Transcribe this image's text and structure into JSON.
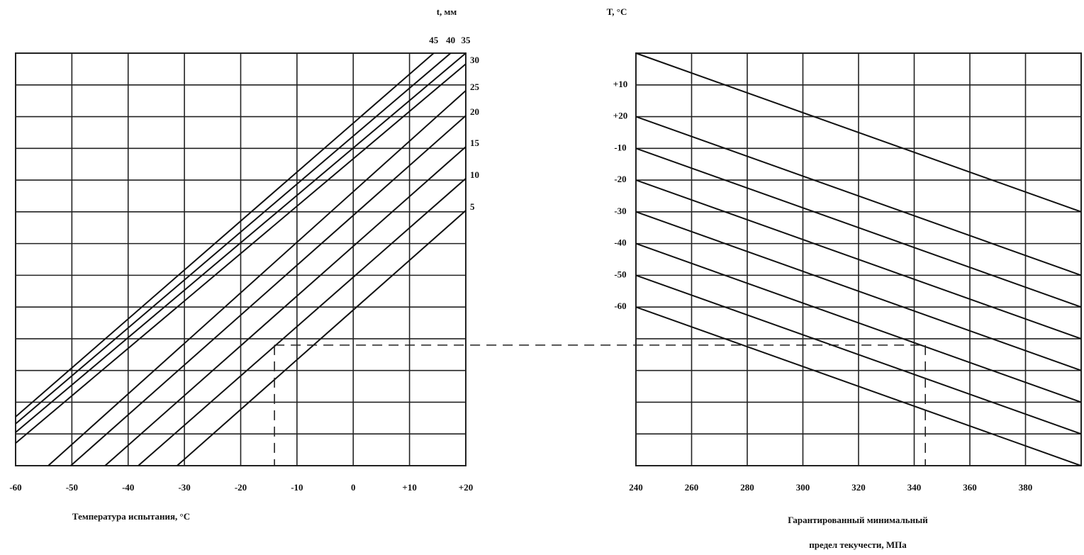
{
  "chart_data": [
    {
      "type": "line",
      "legend_title": "t, мм",
      "xlabel": "Температура испытания, °C",
      "xlim": [
        -60,
        20
      ],
      "xticks": [
        -60,
        -50,
        -40,
        -30,
        -20,
        -10,
        0,
        {
          "value": 10,
          "label": "+10"
        },
        {
          "value": 20,
          "label": "+20"
        }
      ],
      "ylim": [
        0,
        13
      ],
      "grid": true,
      "series": [
        {
          "name": "5",
          "color": "#111111",
          "x": [
            -31.3,
            20
          ],
          "values": [
            0,
            8.04
          ]
        },
        {
          "name": "10",
          "color": "#111111",
          "x": [
            -38.2,
            20
          ],
          "values": [
            0,
            9.05
          ]
        },
        {
          "name": "15",
          "color": "#111111",
          "x": [
            -44.1,
            20
          ],
          "values": [
            0,
            10.05
          ]
        },
        {
          "name": "20",
          "color": "#111111",
          "x": [
            -50.2,
            20
          ],
          "values": [
            0,
            11.03
          ]
        },
        {
          "name": "25",
          "color": "#111111",
          "x": [
            -54.2,
            20
          ],
          "values": [
            0,
            11.82
          ]
        },
        {
          "name": "30",
          "color": "#111111",
          "x": [
            -60,
            20
          ],
          "values": [
            0.71,
            12.66
          ]
        },
        {
          "name": "35",
          "color": "#111111",
          "x": [
            -60,
            20
          ],
          "values": [
            1.05,
            13
          ]
        },
        {
          "name": "40",
          "color": "#111111",
          "x": [
            -60,
            17.3
          ],
          "values": [
            1.32,
            13
          ]
        },
        {
          "name": "45",
          "color": "#111111",
          "x": [
            -60,
            14.3
          ],
          "values": [
            1.54,
            13
          ]
        }
      ],
      "guide": {
        "x": -14,
        "y": 3.8
      }
    },
    {
      "type": "line",
      "legend_title": "T, °C",
      "xlabel": [
        "Гарантированный минимальный",
        "предел текучести, МПа"
      ],
      "xlim": [
        240,
        400
      ],
      "xticks": [
        240,
        260,
        280,
        300,
        320,
        340,
        360,
        380
      ],
      "ylim": [
        0,
        13
      ],
      "grid": true,
      "series": [
        {
          "name": "+10",
          "color": "#111111",
          "x": [
            240,
            400
          ],
          "values": [
            13,
            8
          ]
        },
        {
          "name": "+20",
          "color": "#111111",
          "x": [
            240,
            400
          ],
          "values": [
            11,
            6
          ]
        },
        {
          "name": "-10",
          "color": "#111111",
          "x": [
            240,
            400
          ],
          "values": [
            10,
            5
          ]
        },
        {
          "name": "-20",
          "color": "#111111",
          "x": [
            240,
            400
          ],
          "values": [
            9,
            4
          ]
        },
        {
          "name": "-30",
          "color": "#111111",
          "x": [
            240,
            400
          ],
          "values": [
            8,
            3
          ]
        },
        {
          "name": "-40",
          "color": "#111111",
          "x": [
            240,
            400
          ],
          "values": [
            7,
            2
          ]
        },
        {
          "name": "-50",
          "color": "#111111",
          "x": [
            240,
            400
          ],
          "values": [
            6,
            1
          ]
        },
        {
          "name": "-60",
          "color": "#111111",
          "x": [
            240,
            400
          ],
          "values": [
            5,
            0
          ]
        }
      ],
      "guide": {
        "x": 344,
        "y": 3.8
      }
    }
  ]
}
